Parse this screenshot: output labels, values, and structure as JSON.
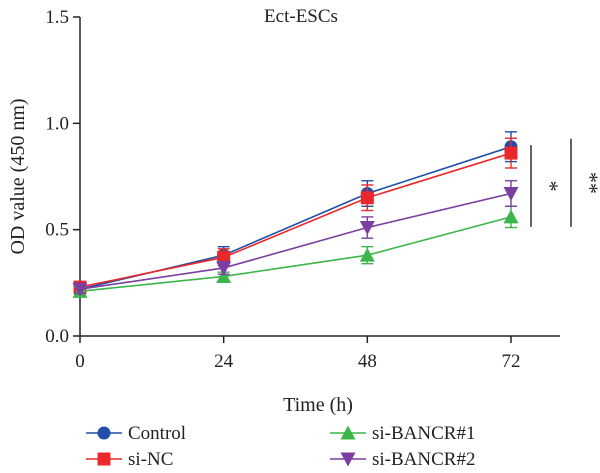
{
  "chart_data": {
    "type": "line",
    "title": "Ect-ESCs",
    "xlabel": "Time (h)",
    "ylabel": "OD value (450 nm)",
    "x": [
      0,
      24,
      48,
      72
    ],
    "x_tick_labels": [
      "0",
      "24",
      "48",
      "72"
    ],
    "ylim": [
      0,
      1.5
    ],
    "y_ticks": [
      0,
      0.5,
      1.0,
      1.5
    ],
    "y_tick_labels": [
      "0.0",
      "0.5",
      "1.0",
      "1.5"
    ],
    "grid": false,
    "legend_position": "bottom",
    "series": [
      {
        "name": "Control",
        "color": "#1f4fa8",
        "marker": "circle",
        "values": [
          0.22,
          0.38,
          0.67,
          0.89
        ],
        "errors": [
          0.02,
          0.04,
          0.06,
          0.07
        ]
      },
      {
        "name": "si-NC",
        "color": "#e8282b",
        "marker": "square",
        "values": [
          0.23,
          0.37,
          0.65,
          0.86
        ],
        "errors": [
          0.02,
          0.04,
          0.06,
          0.07
        ]
      },
      {
        "name": "si-BANCR#1",
        "color": "#3cb54a",
        "marker": "triangle-up",
        "values": [
          0.21,
          0.28,
          0.38,
          0.56
        ],
        "errors": [
          0.02,
          0.02,
          0.04,
          0.05
        ]
      },
      {
        "name": "si-BANCR#2",
        "color": "#7a3fa0",
        "marker": "triangle-down",
        "values": [
          0.22,
          0.32,
          0.51,
          0.67
        ],
        "errors": [
          0.02,
          0.03,
          0.05,
          0.06
        ]
      }
    ],
    "annotations": [
      {
        "label": "*",
        "from": 0.86,
        "to": 0.56
      },
      {
        "label": "**",
        "from": 0.89,
        "to": 0.56
      }
    ]
  }
}
